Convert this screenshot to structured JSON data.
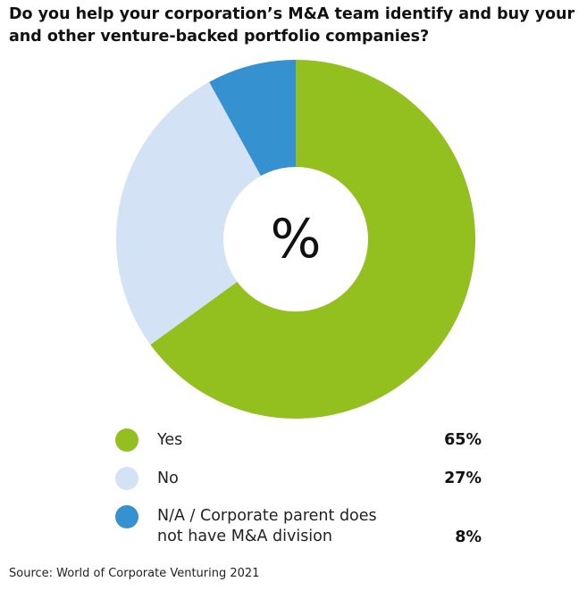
{
  "title": "Do you help your corporation’s M&A team identify and buy your and other venture-backed portfolio companies?",
  "source": "Source: World of Corporate Venturing 2021",
  "center_label": "%",
  "colors": {
    "yes": "#93c01f",
    "no": "#d3e2f4",
    "na": "#3591d0"
  },
  "chart_data": {
    "type": "pie",
    "title": "Do you help your corporation’s M&A team identify and buy your and other venture-backed portfolio companies?",
    "categories": [
      "Yes",
      "No",
      "N/A / Corporate parent does not have M&A division"
    ],
    "values": [
      65,
      27,
      8
    ],
    "value_labels": [
      "65%",
      "27%",
      "8%"
    ],
    "colors": [
      "#93c01f",
      "#d3e2f4",
      "#3591d0"
    ],
    "legend_position": "bottom"
  },
  "legend": [
    {
      "label": "Yes",
      "value": "65%"
    },
    {
      "label": "No",
      "value": "27%"
    },
    {
      "label": "N/A / Corporate parent does\nnot have M&A division",
      "value": "8%"
    }
  ]
}
